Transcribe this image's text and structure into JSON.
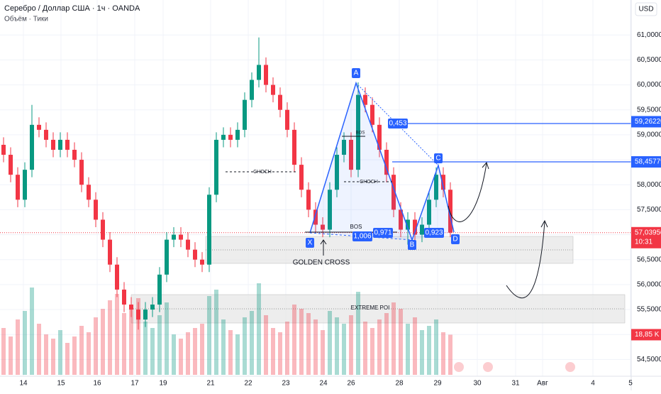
{
  "chart_data": {
    "type": "candlestick",
    "title": "Серебро / Доллар США · 1ч · OANDA",
    "subtitle": "Объём · Тики",
    "currency": "USD",
    "up_color": "#089981",
    "down_color": "#f23645",
    "ylim": [
      53.88,
      61.7
    ],
    "xlim": [
      -0.5,
      88.5
    ],
    "yticks": [
      {
        "value": 61.0,
        "label": "61,00000"
      },
      {
        "value": 60.5,
        "label": "60,50000"
      },
      {
        "value": 60.0,
        "label": "60,00000"
      },
      {
        "value": 59.5,
        "label": "59,50000"
      },
      {
        "value": 59.0,
        "label": "59,00000"
      },
      {
        "value": 58.5,
        "label": "58,50000"
      },
      {
        "value": 58.0,
        "label": "58,00000"
      },
      {
        "value": 57.5,
        "label": "57,50000"
      },
      {
        "value": 57.0,
        "label": "57,00000"
      },
      {
        "value": 56.5,
        "label": "56,50000"
      },
      {
        "value": 56.0,
        "label": "56,00000"
      },
      {
        "value": 55.5,
        "label": "55,50000"
      },
      {
        "value": 55.0,
        "label": "55,00000"
      },
      {
        "value": 54.5,
        "label": "54,50000"
      }
    ],
    "xticks": [
      {
        "value": 2.8,
        "label": "14"
      },
      {
        "value": 8.1,
        "label": "15"
      },
      {
        "value": 13.2,
        "label": "16"
      },
      {
        "value": 18.5,
        "label": "17"
      },
      {
        "value": 22.5,
        "label": "19"
      },
      {
        "value": 29.2,
        "label": "21"
      },
      {
        "value": 34.5,
        "label": "22"
      },
      {
        "value": 39.8,
        "label": "23"
      },
      {
        "value": 45.1,
        "label": "24"
      },
      {
        "value": 49,
        "label": "26"
      },
      {
        "value": 55.8,
        "label": "28"
      },
      {
        "value": 61.2,
        "label": "29"
      },
      {
        "value": 66.8,
        "label": "30"
      },
      {
        "value": 72.2,
        "label": "31"
      },
      {
        "value": 76,
        "label": "Авг"
      },
      {
        "value": 83.1,
        "label": "4"
      },
      {
        "value": 88.4,
        "label": "5"
      }
    ],
    "open": [
      58.8,
      58.6,
      58.2,
      57.7,
      58.3,
      59.2,
      59.1,
      58.9,
      58.7,
      58.9,
      58.7,
      58.5,
      58.0,
      57.7,
      57.3,
      56.9,
      56.4,
      55.9,
      55.6,
      55.5,
      55.3,
      55.5,
      55.6,
      56.2,
      56.9,
      57.0,
      56.9,
      56.7,
      56.5,
      56.4,
      57.8,
      58.9,
      59.0,
      58.9,
      59.1,
      59.7,
      60.1,
      60.4,
      60.0,
      59.8,
      59.5,
      59.1,
      58.4,
      57.9,
      57.5,
      57.2,
      57.1,
      57.9,
      58.6,
      58.9,
      58.3,
      59.8,
      59.6,
      59.2,
      58.7,
      58.2,
      57.5,
      57.1,
      57.3,
      57.0,
      57.2,
      57.7,
      58.2,
      57.9
    ],
    "high": [
      58.95,
      58.75,
      58.35,
      58.45,
      59.6,
      59.35,
      59.25,
      59.05,
      59.05,
      59.05,
      58.85,
      58.65,
      58.15,
      57.85,
      57.45,
      57.05,
      56.55,
      56.05,
      55.75,
      55.65,
      55.65,
      55.75,
      56.35,
      57.05,
      57.15,
      57.15,
      57.05,
      56.85,
      56.65,
      57.95,
      59.05,
      59.15,
      59.15,
      59.25,
      59.85,
      60.25,
      60.95,
      60.55,
      60.15,
      59.95,
      59.65,
      59.25,
      58.55,
      58.05,
      57.65,
      57.35,
      58.05,
      58.75,
      59.05,
      59.05,
      60.05,
      59.95,
      59.75,
      59.35,
      58.85,
      58.35,
      57.65,
      57.45,
      57.45,
      57.35,
      57.85,
      58.35,
      58.35,
      58.05
    ],
    "low": [
      58.45,
      58.05,
      57.55,
      57.55,
      58.15,
      58.95,
      58.75,
      58.55,
      58.55,
      58.55,
      58.35,
      57.85,
      57.55,
      57.15,
      56.75,
      56.25,
      55.75,
      55.45,
      55.35,
      55.1,
      55.15,
      55.35,
      55.45,
      56.05,
      56.75,
      56.75,
      56.55,
      56.35,
      56.25,
      56.25,
      57.65,
      58.75,
      58.75,
      58.75,
      58.95,
      59.55,
      59.95,
      59.85,
      59.65,
      59.35,
      58.95,
      58.25,
      57.75,
      57.35,
      57.05,
      56.95,
      56.95,
      57.75,
      58.45,
      58.15,
      58.15,
      59.45,
      59.05,
      58.55,
      58.05,
      57.35,
      56.95,
      56.8,
      56.85,
      56.85,
      57.05,
      57.55,
      57.75,
      56.95
    ],
    "close": [
      58.6,
      58.2,
      57.7,
      58.3,
      59.2,
      59.1,
      58.9,
      58.7,
      58.9,
      58.7,
      58.5,
      58.0,
      57.7,
      57.3,
      56.9,
      56.4,
      55.9,
      55.6,
      55.5,
      55.3,
      55.5,
      55.6,
      56.2,
      56.9,
      57.0,
      56.9,
      56.7,
      56.5,
      56.4,
      57.8,
      58.9,
      59.0,
      58.9,
      59.1,
      59.7,
      60.1,
      60.4,
      60.0,
      59.8,
      59.5,
      59.1,
      58.4,
      57.9,
      57.5,
      57.2,
      57.1,
      57.9,
      58.6,
      58.9,
      58.3,
      59.8,
      59.6,
      59.2,
      58.7,
      58.2,
      57.5,
      57.1,
      57.3,
      57.0,
      57.2,
      57.7,
      58.2,
      57.9,
      57.04
    ],
    "volume": [
      22,
      18,
      26,
      30,
      41,
      24,
      19,
      17,
      21,
      15,
      18,
      23,
      20,
      27,
      31,
      35,
      38,
      29,
      33,
      36,
      25,
      22,
      28,
      34,
      19,
      17,
      20,
      22,
      24,
      37,
      40,
      26,
      21,
      19,
      27,
      30,
      43,
      28,
      22,
      20,
      25,
      33,
      31,
      29,
      26,
      21,
      30,
      27,
      24,
      28,
      39,
      25,
      22,
      26,
      29,
      34,
      31,
      24,
      27,
      21,
      23,
      26,
      20,
      18.85
    ],
    "volume_last_label": "18,85 K",
    "price_tags": [
      {
        "value": 59.2622,
        "label": "59,26220"
      },
      {
        "value": 58.45779,
        "label": "58,45779"
      }
    ],
    "last_price": {
      "value": 57.0395,
      "label": "57,03950",
      "countdown": "10:31"
    },
    "pattern_labels": [
      "X",
      "A",
      "B",
      "C",
      "D"
    ],
    "ratio_labels": [
      "0,453",
      "0,971",
      "1,006",
      "0,923"
    ],
    "annotations": [
      "BOS",
      "CHOCH",
      "CHOCH",
      "BOS",
      "GOLDEN CROSS",
      "EXTREME POI"
    ]
  }
}
